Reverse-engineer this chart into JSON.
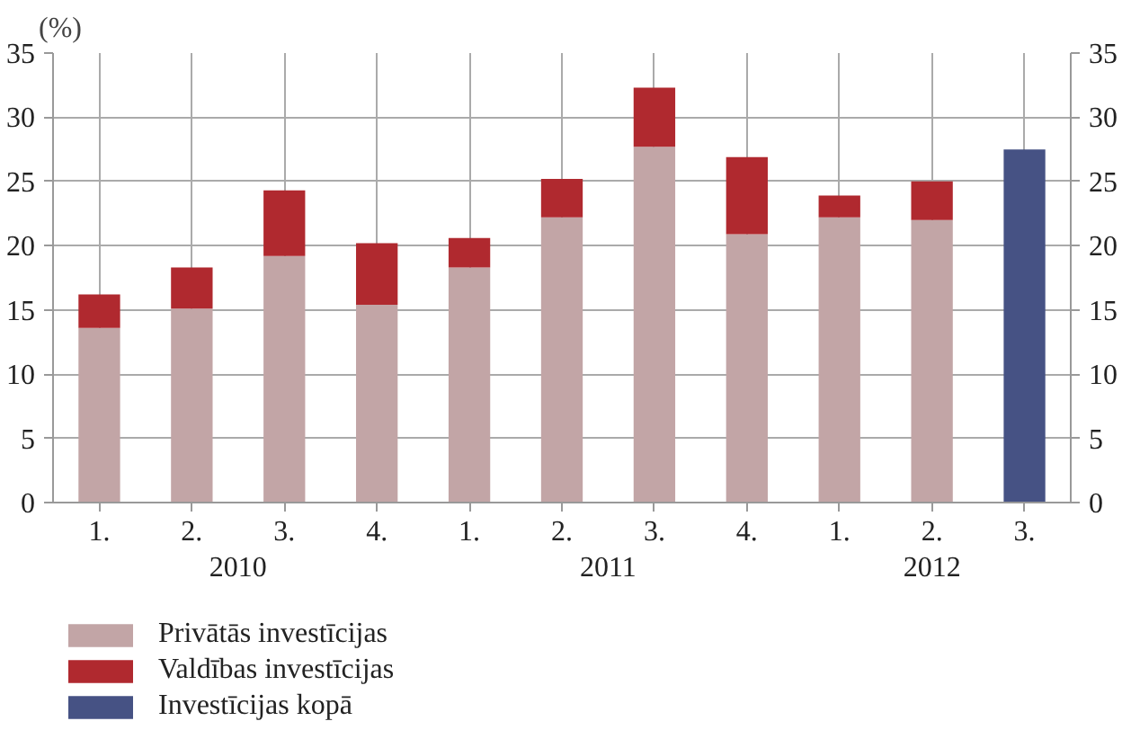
{
  "chart_data": {
    "type": "bar",
    "stacked": true,
    "ylabel": "(%)",
    "categories": [
      "1.",
      "2.",
      "3.",
      "4.",
      "1.",
      "2.",
      "3.",
      "4.",
      "1.",
      "2.",
      "3."
    ],
    "annotations": [
      "2010",
      "2011",
      "2012"
    ],
    "series": [
      {
        "name": "Privātās investīcijas",
        "color": "#c2a5a6",
        "values": [
          13.6,
          15.1,
          19.2,
          15.4,
          18.3,
          22.2,
          27.7,
          20.9,
          22.2,
          22.0,
          null
        ]
      },
      {
        "name": "Valdības investīcijas",
        "color": "#b0292f",
        "values": [
          2.6,
          3.2,
          5.1,
          4.8,
          2.3,
          3.0,
          4.6,
          6.0,
          1.7,
          3.0,
          null
        ]
      },
      {
        "name": "Investīcijas kopā",
        "color": "#465284",
        "values": [
          null,
          null,
          null,
          null,
          null,
          null,
          null,
          null,
          null,
          null,
          27.5
        ]
      }
    ],
    "ylim": [
      0,
      35
    ],
    "yticks": [
      0,
      5,
      10,
      15,
      20,
      25,
      30,
      35
    ],
    "y2lim": [
      0,
      35
    ],
    "y2ticks": [
      0,
      5,
      10,
      15,
      20,
      25,
      30,
      35
    ],
    "grid": true,
    "legend": "bottom left"
  }
}
